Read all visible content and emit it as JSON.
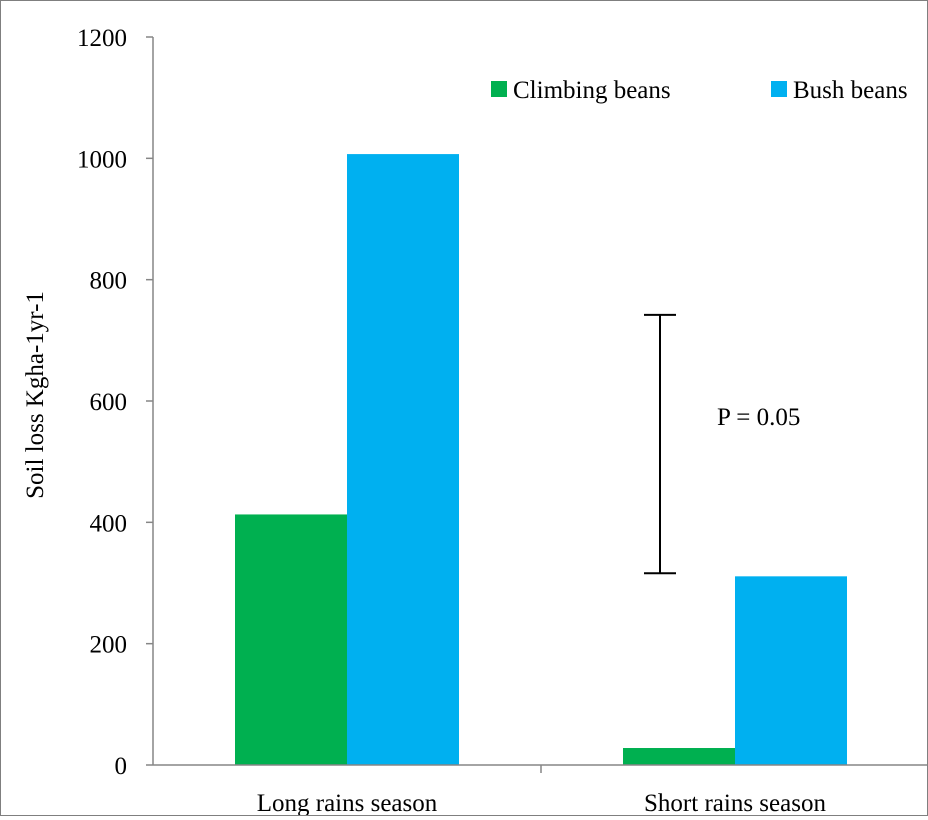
{
  "chart_data": {
    "type": "bar",
    "title": "",
    "xlabel": "",
    "ylabel": "Soil loss Kgha-1yr-1",
    "categories": [
      "Long rains season",
      "Short rains season"
    ],
    "series": [
      {
        "name": "Climbing beans",
        "color": "#00b050",
        "values": [
          413,
          28
        ]
      },
      {
        "name": "Bush beans",
        "color": "#00b0f0",
        "values": [
          1007,
          311
        ]
      }
    ],
    "ylim": [
      0,
      1200
    ],
    "yticks": [
      0,
      200,
      400,
      600,
      800,
      1000,
      1200
    ],
    "grid": false,
    "legend": "top-right",
    "annotation": {
      "text": "P = 0.05",
      "error_bar": {
        "low": 316,
        "high": 742
      }
    }
  }
}
